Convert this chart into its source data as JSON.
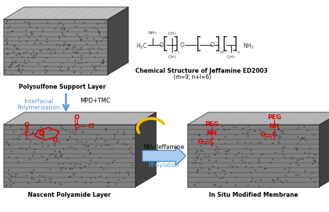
{
  "bg_color": "#ffffff",
  "black": "#000000",
  "red": "#dd0000",
  "blue": "#5b9bd5",
  "blue_dark": "#3070b0",
  "yellow": "#f0c000",
  "gray_face": "#909090",
  "gray_top": "#c5c5c5",
  "gray_side": "#505050",
  "gray_dark": "#383838",
  "label_polysulfone": "Polysulfone Support Layer",
  "label_nascent": "Nascent Polyamide Layer",
  "label_insitu": "In Situ Modified Membrane",
  "label_chem": "Chemical Structure of Jeffamine ED2003",
  "label_chem2": "(m≈9; n+l≈6)",
  "label_interfacial1": "Interfacial",
  "label_interfacial2": "Polymerization",
  "label_mpd": "MPD+TMC",
  "label_nh2": "NH₂-Jeffamine",
  "label_pegylation": "PEGylation"
}
